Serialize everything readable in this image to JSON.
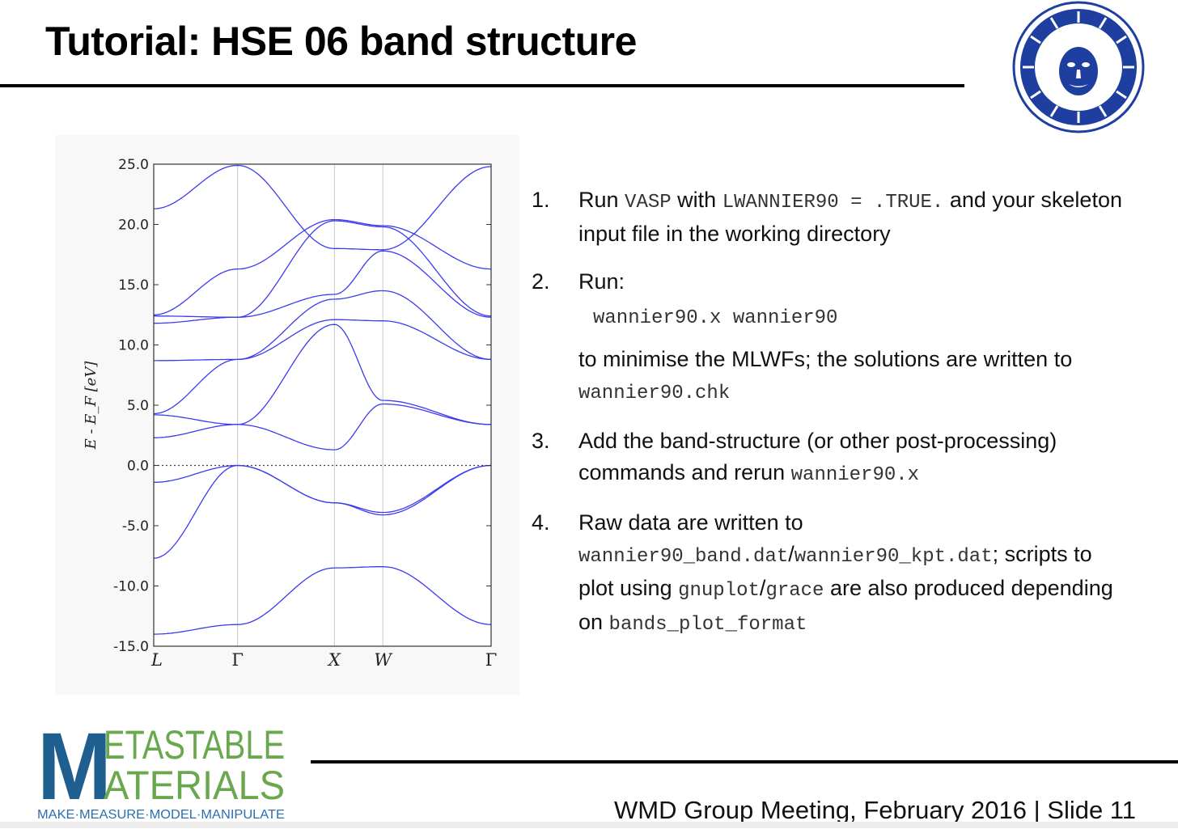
{
  "slide": {
    "title": "Tutorial: HSE 06 band structure",
    "footer": "WMD Group Meeting, February 2016 | Slide 11"
  },
  "logos": {
    "university_seal": "sun-face seal",
    "group_logo": {
      "line1": "METASTABLE",
      "line2": "MATERIALS",
      "tagline": "MAKE·MEASURE·MODEL·MANIPULATE",
      "colors": {
        "big_m": "#1f5f8f",
        "text": "#6aa84f",
        "tagline": "#2a6fb0"
      }
    }
  },
  "steps": [
    {
      "num": "1.",
      "t1": "Run ",
      "c1": "VASP",
      "t2": " with ",
      "c2": "LWANNIER90 = .TRUE.",
      "t3": " and your skeleton input file in the working directory"
    },
    {
      "num": "2.",
      "t1": "Run:",
      "cmd": "wannier90.x wannier90",
      "after": "to minimise the MLWFs; the solutions are written to ",
      "c1": "wannier90.chk"
    },
    {
      "num": "3.",
      "t1": "Add the band-structure (or other post-processing) commands and rerun ",
      "c1": "wannier90.x"
    },
    {
      "num": "4.",
      "t1": "Raw data are written to ",
      "c1": "wannier90_band.dat",
      "s1": "/",
      "c2": "wannier90_kpt.dat",
      "t2": "; scripts to plot using ",
      "c3": "gnuplot",
      "s2": "/",
      "c4": "grace",
      "t3": " are also produced depending on ",
      "c5": "bands_plot_format"
    }
  ],
  "chart_data": {
    "type": "line",
    "title": "",
    "xlabel": "",
    "ylabel": "E - E_F [eV]",
    "ylim": [
      -15.0,
      25.0
    ],
    "yticks": [
      "25.0",
      "20.0",
      "15.0",
      "10.0",
      "5.0",
      "0.0",
      "-5.0",
      "-10.0",
      "-15.0"
    ],
    "kpoint_labels": [
      "L",
      "Γ",
      "X",
      "W",
      "Γ"
    ],
    "kpoint_positions": [
      0.0,
      0.866,
      1.866,
      2.366,
      3.484
    ],
    "fermi_level": 0.0,
    "line_color": "#3b3bf0",
    "bands": [
      [
        -14.0,
        -13.2,
        -8.5,
        -8.4,
        -13.2
      ],
      [
        -7.7,
        0.0,
        -3.1,
        -4.1,
        0.0
      ],
      [
        -1.4,
        0.0,
        -3.1,
        -3.9,
        0.0
      ],
      [
        2.3,
        3.4,
        1.3,
        5.1,
        3.4
      ],
      [
        4.2,
        3.4,
        11.7,
        5.4,
        3.4
      ],
      [
        4.3,
        8.8,
        12.1,
        12.0,
        8.8
      ],
      [
        8.7,
        8.8,
        13.8,
        14.5,
        8.8
      ],
      [
        11.8,
        12.3,
        14.2,
        17.8,
        12.3
      ],
      [
        12.4,
        12.3,
        20.3,
        19.8,
        12.4
      ],
      [
        12.5,
        16.3,
        20.4,
        19.9,
        16.3
      ],
      [
        21.3,
        24.9,
        18.0,
        17.9,
        24.8
      ]
    ]
  }
}
